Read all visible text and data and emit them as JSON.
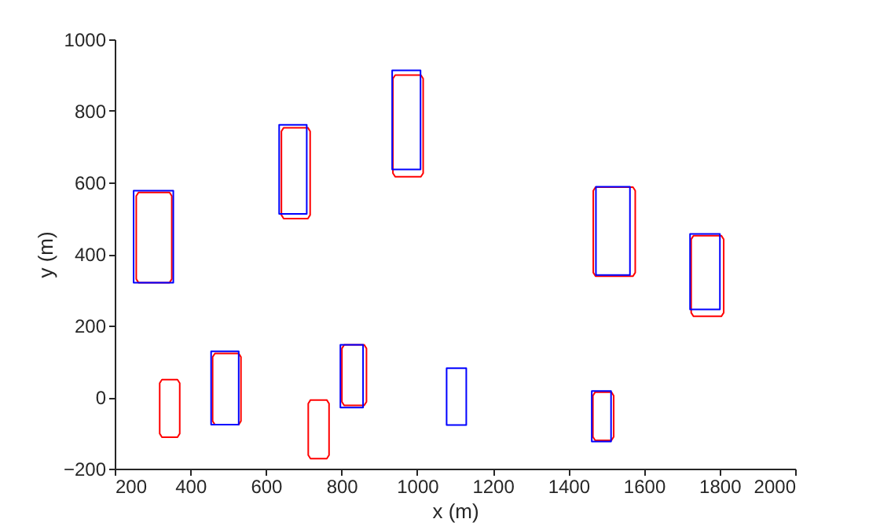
{
  "chart_data": {
    "type": "line",
    "xlabel": "x (m)",
    "ylabel": "y (m)",
    "xlim": [
      200,
      2000
    ],
    "ylim": [
      -200,
      1000
    ],
    "xticks": [
      200,
      400,
      600,
      800,
      1000,
      1200,
      1400,
      1600,
      1800,
      2000
    ],
    "yticks": [
      -200,
      0,
      200,
      400,
      600,
      800,
      1000
    ],
    "grid": false,
    "legend": false,
    "marker": "none",
    "line_style": "solid",
    "series": [
      {
        "color": "#ff0000",
        "x": [
          263,
          345,
          351,
          351,
          345,
          263,
          257,
          257,
          263,
          345
        ],
        "values": [
          320,
          320,
          330,
          562,
          572,
          572,
          562,
          330,
          320,
          320
        ]
      },
      {
        "color": "#ff0000",
        "x": [
          325,
          366,
          372,
          372,
          366,
          325,
          319,
          319,
          325,
          366
        ],
        "values": [
          -112,
          -112,
          -102,
          39,
          49,
          49,
          39,
          -102,
          -112,
          -112
        ]
      },
      {
        "color": "#ff0000",
        "x": [
          465,
          528,
          534,
          534,
          528,
          465,
          459,
          459,
          465,
          528
        ],
        "values": [
          -77,
          -77,
          -67,
          112,
          122,
          122,
          112,
          -67,
          -77,
          -77
        ]
      },
      {
        "color": "#ff0000",
        "x": [
          647,
          711,
          717,
          717,
          711,
          647,
          641,
          641,
          647,
          711
        ],
        "values": [
          499,
          499,
          509,
          743,
          753,
          753,
          743,
          509,
          499,
          499
        ]
      },
      {
        "color": "#ff0000",
        "x": [
          718,
          761,
          767,
          767,
          761,
          718,
          712,
          712,
          718,
          761
        ],
        "values": [
          -172,
          -172,
          -162,
          -18,
          -8,
          -8,
          -18,
          -162,
          -172,
          -172
        ]
      },
      {
        "color": "#ff0000",
        "x": [
          807,
          860,
          866,
          866,
          860,
          807,
          801,
          801,
          807,
          860
        ],
        "values": [
          -23,
          -23,
          -13,
          136,
          146,
          146,
          136,
          -13,
          -23,
          -23
        ]
      },
      {
        "color": "#ff0000",
        "x": [
          942,
          1010,
          1016,
          1016,
          1010,
          942,
          936,
          936,
          942,
          1010
        ],
        "values": [
          616,
          616,
          626,
          890,
          900,
          900,
          890,
          626,
          616,
          616
        ]
      },
      {
        "color": "#ff0000",
        "x": [
          1472,
          1571,
          1577,
          1577,
          1571,
          1472,
          1466,
          1466,
          1472,
          1571
        ],
        "values": [
          338,
          338,
          348,
          577,
          587,
          587,
          577,
          348,
          338,
          338
        ]
      },
      {
        "color": "#ff0000",
        "x": [
          1731,
          1805,
          1811,
          1811,
          1805,
          1731,
          1725,
          1725,
          1731,
          1805
        ],
        "values": [
          226,
          226,
          236,
          441,
          451,
          451,
          441,
          236,
          226,
          226
        ]
      },
      {
        "color": "#ff0000",
        "x": [
          1471,
          1514,
          1520,
          1520,
          1514,
          1471,
          1465,
          1465,
          1471,
          1514
        ],
        "values": [
          -121,
          -121,
          -111,
          4,
          14,
          14,
          4,
          -111,
          -121,
          -121
        ]
      },
      {
        "color": "#0000ff",
        "x": [
          250,
          355,
          355,
          250,
          250,
          355
        ],
        "values": [
          320,
          320,
          577,
          577,
          320,
          320
        ]
      },
      {
        "color": "#0000ff",
        "x": [
          455,
          528,
          528,
          455,
          455,
          528
        ],
        "values": [
          -77,
          -77,
          128,
          128,
          -77,
          -77
        ]
      },
      {
        "color": "#0000ff",
        "x": [
          635,
          708,
          708,
          635,
          635,
          708
        ],
        "values": [
          512,
          512,
          761,
          761,
          512,
          512
        ]
      },
      {
        "color": "#0000ff",
        "x": [
          934,
          1009,
          1009,
          934,
          934,
          1009
        ],
        "values": [
          636,
          636,
          913,
          913,
          636,
          636
        ]
      },
      {
        "color": "#0000ff",
        "x": [
          797,
          857,
          857,
          797,
          797,
          857
        ],
        "values": [
          -29,
          -29,
          146,
          146,
          -29,
          -29
        ]
      },
      {
        "color": "#0000ff",
        "x": [
          1078,
          1130,
          1130,
          1078,
          1078,
          1130
        ],
        "values": [
          -78,
          -78,
          81,
          81,
          -78,
          -78
        ]
      },
      {
        "color": "#0000ff",
        "x": [
          1473,
          1563,
          1563,
          1473,
          1473,
          1563
        ],
        "values": [
          341,
          341,
          588,
          588,
          341,
          341
        ]
      },
      {
        "color": "#0000ff",
        "x": [
          1722,
          1801,
          1801,
          1722,
          1722,
          1801
        ],
        "values": [
          245,
          245,
          456,
          456,
          245,
          245
        ]
      },
      {
        "color": "#0000ff",
        "x": [
          1462,
          1513,
          1513,
          1462,
          1462,
          1513
        ],
        "values": [
          -124,
          -124,
          17,
          17,
          -124,
          -124
        ]
      }
    ]
  }
}
